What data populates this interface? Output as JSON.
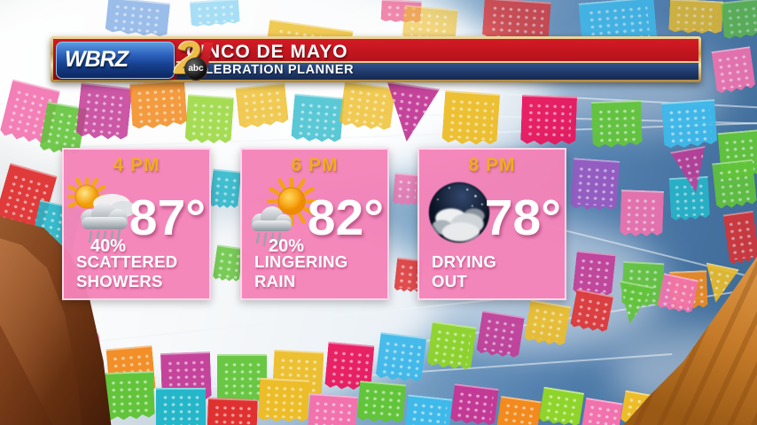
{
  "header": {
    "station": "WBRZ",
    "channel": "2",
    "network": "abc",
    "title": "CINCO DE MAYO",
    "subtitle": "CELEBRATION PLANNER"
  },
  "cards": [
    {
      "time": "4 PM",
      "temp": "87°",
      "precip": "40%",
      "condition": "SCATTERED SHOWERS",
      "icon": "sun-behind-rain-clouds-icon"
    },
    {
      "time": "6 PM",
      "temp": "82°",
      "precip": "20%",
      "condition": "LINGERING RAIN",
      "icon": "sun-with-rain-cloud-icon"
    },
    {
      "time": "8 PM",
      "temp": "78°",
      "precip": "",
      "condition": "DRYING OUT",
      "icon": "cloudy-night-icon"
    }
  ],
  "colors": {
    "banner_red": "#b5121b",
    "banner_navy": "#24407a",
    "gold_frame": "#d8b264",
    "logo_blue_top": "#4a8fd6",
    "logo_blue_bottom": "#0d2a66",
    "card_pink": "#f583b8",
    "time_gold": "#efae1c",
    "sky_blue": "#4a7cb0",
    "text_white": "#ffffff"
  }
}
